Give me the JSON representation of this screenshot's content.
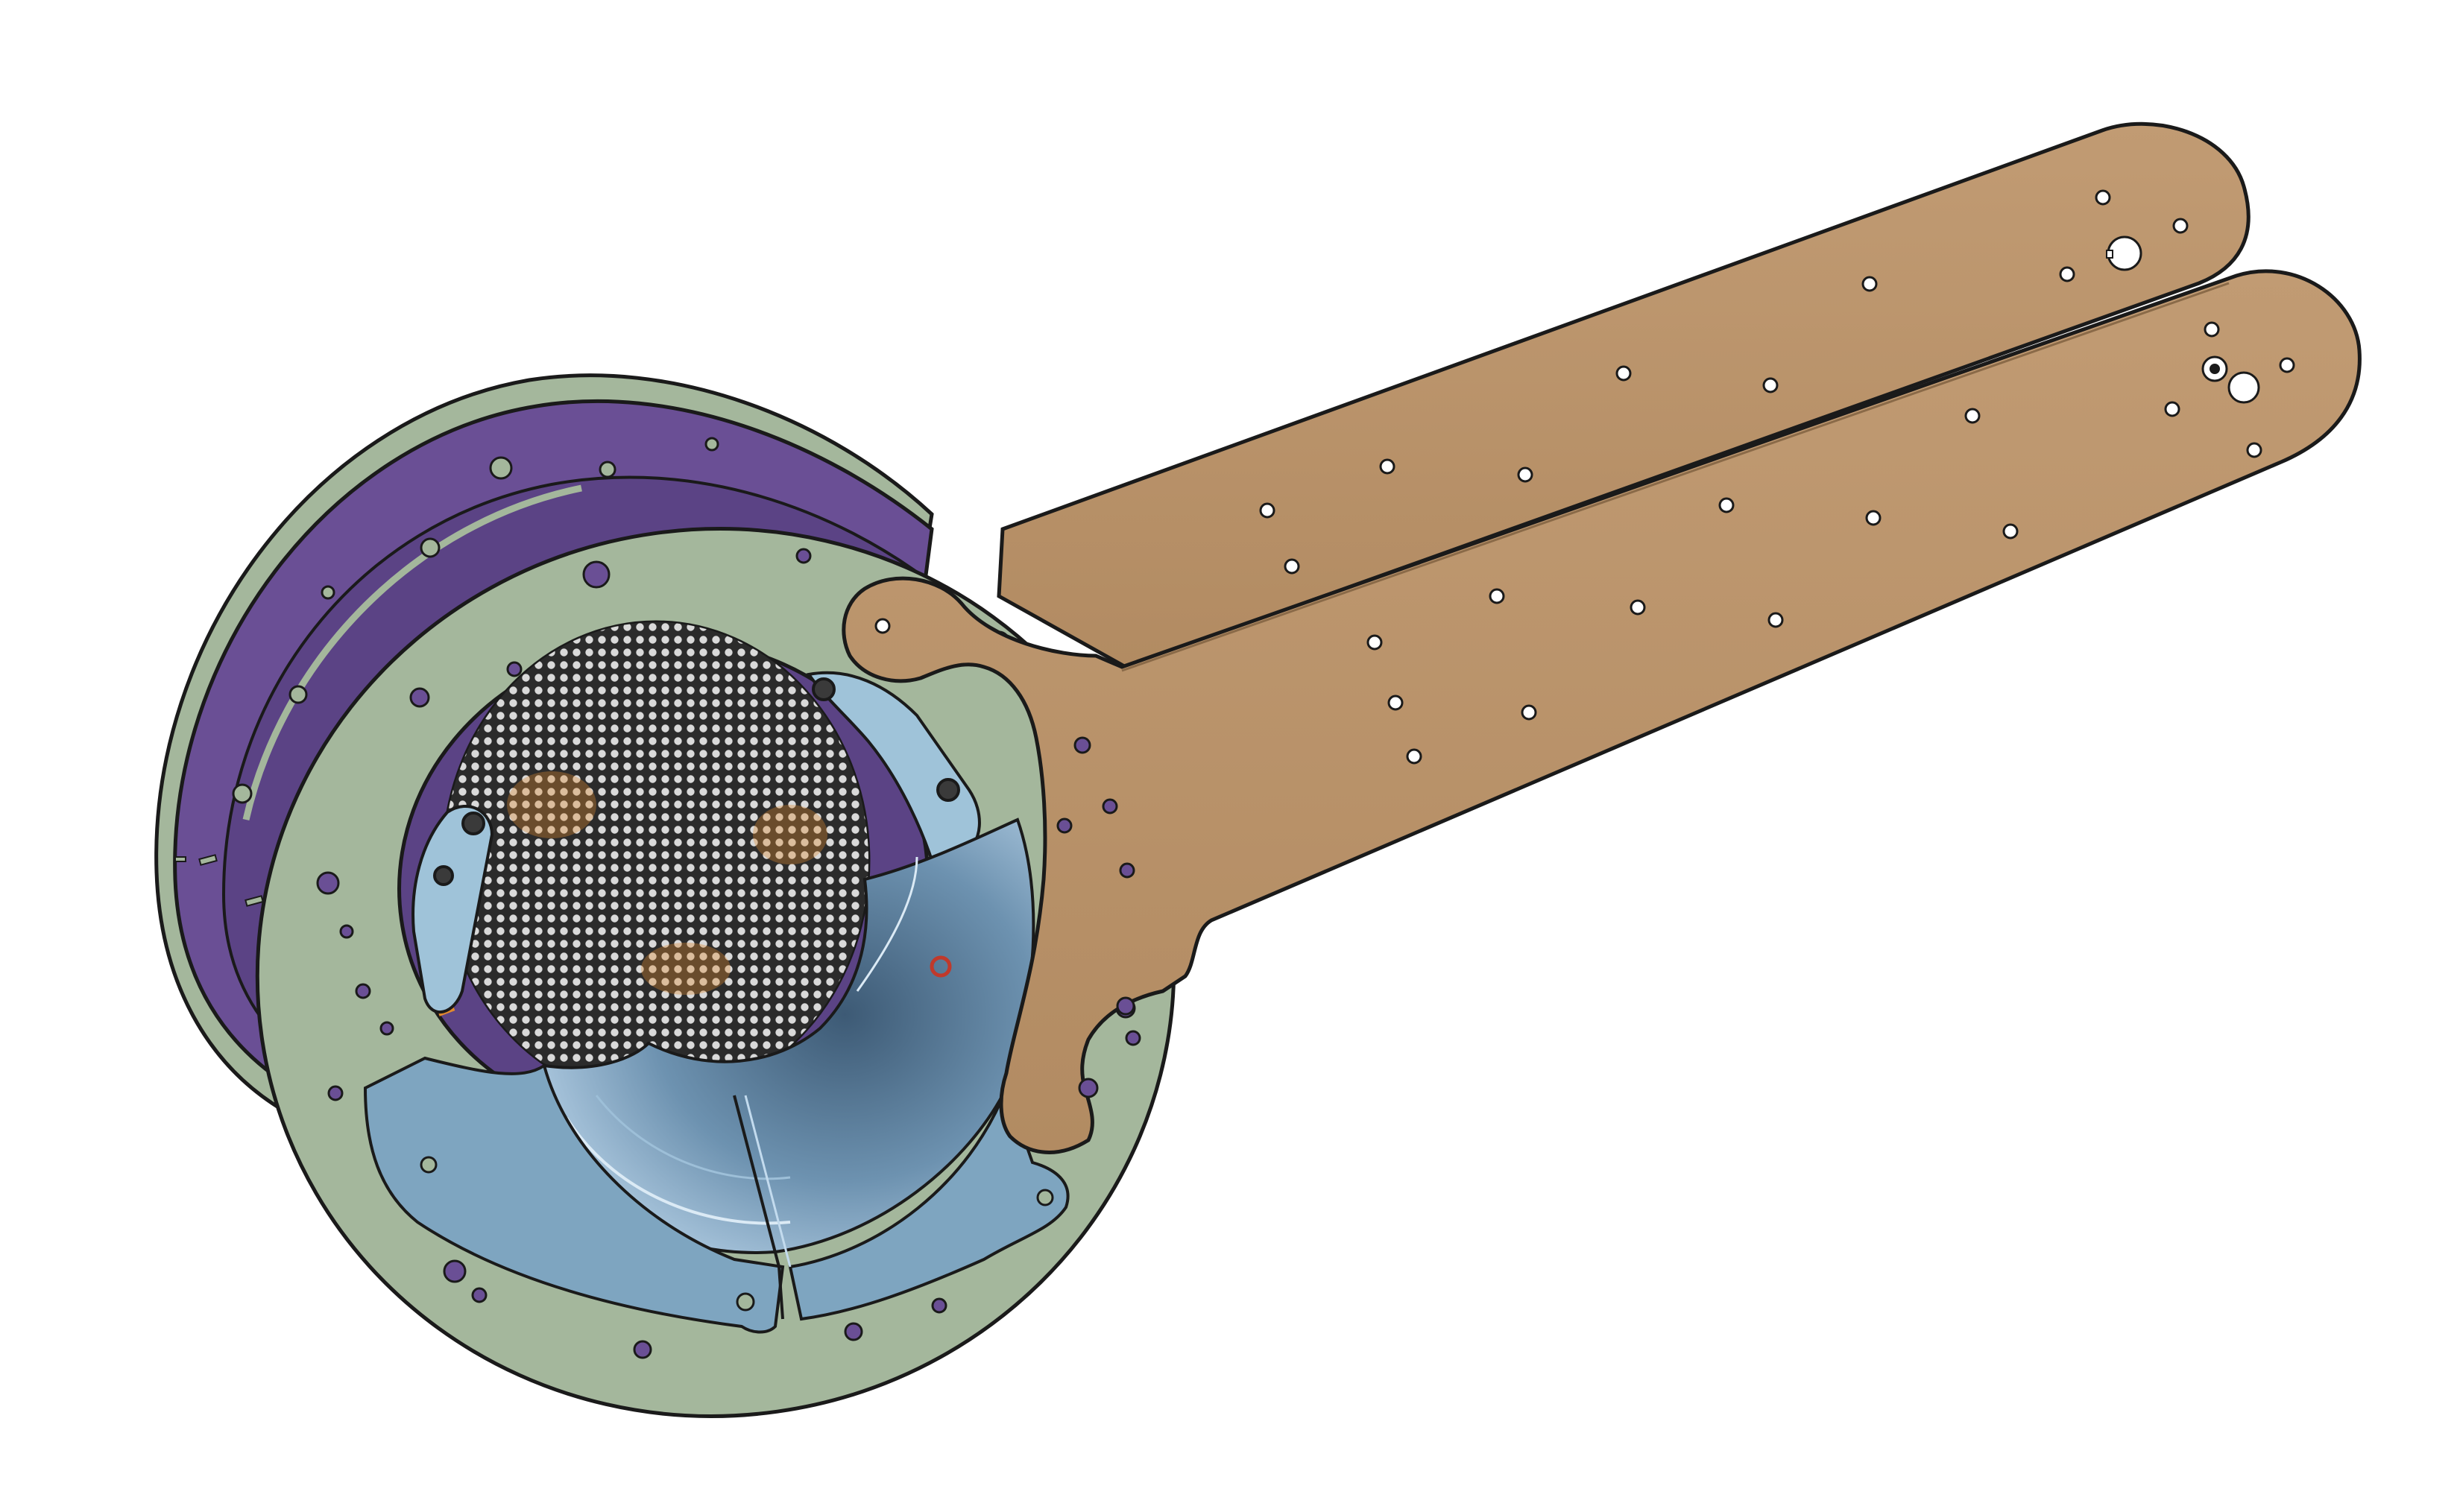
{
  "scene": {
    "title": "",
    "background": "#ffffff"
  },
  "colors": {
    "outline": "#1a1a1a",
    "arm_fill": "#b99268",
    "arm_fill_light": "#c5a07a",
    "ring_fill": "#a4b79c",
    "purple_fill": "#6a4f95",
    "purple_dark": "#4e3a78",
    "shroud_fill": "#7ea5c0",
    "shroud_light": "#c3dbee",
    "bowl_dark": "#4a6a86",
    "mesh_bg": "#2a2a2a",
    "mesh_hole": "#d7d7d7",
    "hole_fill": "#ffffff",
    "hole_purple": "#6a4f95",
    "bracket_fill": "#9fc3d9",
    "accent_orange": "#e0892e",
    "accent_red": "#c0392b"
  },
  "parts": [
    {
      "id": "purple-back-plate",
      "kind": "plate",
      "icon": "disc-plate-icon"
    },
    {
      "id": "green-front-ring",
      "kind": "ring",
      "icon": "ring-plate-icon"
    },
    {
      "id": "upper-arm",
      "kind": "arm",
      "icon": "arm-plate-icon"
    },
    {
      "id": "lower-arm",
      "kind": "arm",
      "icon": "arm-plate-icon"
    },
    {
      "id": "perforated-mesh",
      "kind": "mesh",
      "icon": "mesh-grid-icon"
    },
    {
      "id": "blue-shroud",
      "kind": "shroud",
      "icon": "curved-shroud-icon"
    },
    {
      "id": "mounting-brackets",
      "kind": "bracket",
      "icon": "bracket-icon"
    }
  ]
}
